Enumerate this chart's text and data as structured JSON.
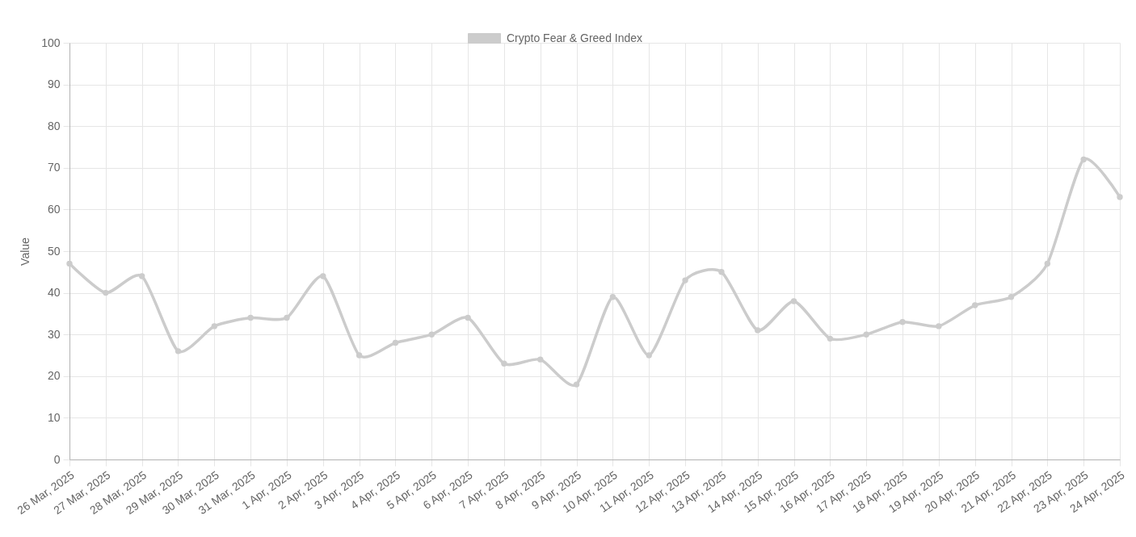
{
  "chart_data": {
    "type": "line",
    "ylabel": "Value",
    "categories": [
      "26 Mar, 2025",
      "27 Mar, 2025",
      "28 Mar, 2025",
      "29 Mar, 2025",
      "30 Mar, 2025",
      "31 Mar, 2025",
      "1 Apr, 2025",
      "2 Apr, 2025",
      "3 Apr, 2025",
      "4 Apr, 2025",
      "5 Apr, 2025",
      "6 Apr, 2025",
      "7 Apr, 2025",
      "8 Apr, 2025",
      "9 Apr, 2025",
      "10 Apr, 2025",
      "11 Apr, 2025",
      "12 Apr, 2025",
      "13 Apr, 2025",
      "14 Apr, 2025",
      "15 Apr, 2025",
      "16 Apr, 2025",
      "17 Apr, 2025",
      "18 Apr, 2025",
      "19 Apr, 2025",
      "20 Apr, 2025",
      "21 Apr, 2025",
      "22 Apr, 2025",
      "23 Apr, 2025",
      "24 Apr, 2025"
    ],
    "series": [
      {
        "name": "Crypto Fear & Greed Index",
        "color": "#cccccc",
        "values": [
          47,
          40,
          44,
          26,
          32,
          34,
          34,
          44,
          25,
          28,
          30,
          34,
          23,
          24,
          18,
          39,
          25,
          43,
          45,
          31,
          38,
          29,
          30,
          33,
          32,
          37,
          39,
          47,
          72,
          63
        ]
      }
    ],
    "ylim": [
      0,
      100
    ],
    "yticks": [
      0,
      10,
      20,
      30,
      40,
      50,
      60,
      70,
      80,
      90,
      100
    ],
    "grid": true,
    "legend": "top",
    "marker": "circle",
    "line_style": "solid"
  }
}
